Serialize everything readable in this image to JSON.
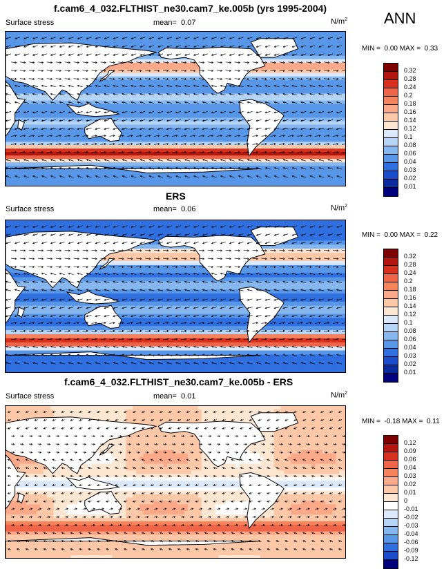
{
  "season": "ANN",
  "panels": [
    {
      "title": "f.cam6_4_032.FLTHIST_ne30.cam7_ke.005b (yrs 1995-2004)",
      "variable": "Surface stress",
      "mean_label": "mean=",
      "mean_value": "0.07",
      "units_base": "N/m",
      "units_exp": "2",
      "min_label": "MIN =",
      "min_value": "0.00",
      "max_label": "MAX =",
      "max_value": "0.33",
      "colorbar": [
        "0.32",
        "0.28",
        "0.24",
        "0.2",
        "0.18",
        "0.16",
        "0.14",
        "0.12",
        "0.1",
        "0.08",
        "0.06",
        "0.04",
        "0.03",
        "0.02",
        "0.01"
      ],
      "colors": [
        "#7f0000",
        "#b2160e",
        "#d7301f",
        "#ef6548",
        "#f5845c",
        "#fca98a",
        "#fcc8a8",
        "#fde6d2",
        "#dbe9fa",
        "#b6d4f5",
        "#86b7ee",
        "#5896e8",
        "#2f6fdf",
        "#1a4ccb",
        "#0a2a9e",
        "#00007f"
      ]
    },
    {
      "title": "ERS",
      "variable": "Surface stress",
      "mean_label": "mean=",
      "mean_value": "0.06",
      "units_base": "N/m",
      "units_exp": "2",
      "min_label": "MIN =",
      "min_value": "0.00",
      "max_label": "MAX =",
      "max_value": "0.22",
      "colorbar": [
        "0.32",
        "0.28",
        "0.24",
        "0.2",
        "0.18",
        "0.16",
        "0.14",
        "0.12",
        "0.1",
        "0.08",
        "0.06",
        "0.04",
        "0.03",
        "0.02",
        "0.01"
      ],
      "colors": [
        "#7f0000",
        "#b2160e",
        "#d7301f",
        "#ef6548",
        "#f5845c",
        "#fca98a",
        "#fcc8a8",
        "#fde6d2",
        "#dbe9fa",
        "#b6d4f5",
        "#86b7ee",
        "#5896e8",
        "#2f6fdf",
        "#1a4ccb",
        "#0a2a9e",
        "#00007f"
      ]
    },
    {
      "title": "f.cam6_4_032.FLTHIST_ne30.cam7_ke.005b - ERS",
      "variable": "Surface stress",
      "mean_label": "mean=",
      "mean_value": "0.01",
      "units_base": "N/m",
      "units_exp": "2",
      "min_label": "MIN =",
      "min_value": "-0.18",
      "max_label": "MAX =",
      "max_value": "0.11",
      "colorbar": [
        "0.12",
        "0.09",
        "0.06",
        "0.04",
        "0.03",
        "0.02",
        "0.01",
        "0",
        "-0.01",
        "-0.02",
        "-0.03",
        "-0.04",
        "-0.06",
        "-0.09",
        "-0.12"
      ],
      "colors": [
        "#7f0000",
        "#b2160e",
        "#d7301f",
        "#ef6548",
        "#f5845c",
        "#fca98a",
        "#fcc8a8",
        "#fde6d2",
        "#ffffff",
        "#dbe9fa",
        "#b6d4f5",
        "#86b7ee",
        "#5896e8",
        "#2f6fdf",
        "#1a4ccb",
        "#00007f"
      ]
    }
  ],
  "chart_data": [
    {
      "type": "heatmap",
      "title": "f.cam6_4_032.FLTHIST_ne30.cam7_ke.005b (yrs 1995-2004)",
      "variable": "Surface stress",
      "units": "N/m2",
      "mean": 0.07,
      "min": 0.0,
      "max": 0.33,
      "contour_levels": [
        0.01,
        0.02,
        0.03,
        0.04,
        0.06,
        0.08,
        0.1,
        0.12,
        0.14,
        0.16,
        0.18,
        0.2,
        0.24,
        0.28,
        0.32
      ],
      "overlay": "wind stress vectors",
      "projection": "global cylindrical, Pacific-centered"
    },
    {
      "type": "heatmap",
      "title": "ERS",
      "variable": "Surface stress",
      "units": "N/m2",
      "mean": 0.06,
      "min": 0.0,
      "max": 0.22,
      "contour_levels": [
        0.01,
        0.02,
        0.03,
        0.04,
        0.06,
        0.08,
        0.1,
        0.12,
        0.14,
        0.16,
        0.18,
        0.2,
        0.24,
        0.28,
        0.32
      ],
      "overlay": "wind stress vectors",
      "projection": "global cylindrical, Pacific-centered"
    },
    {
      "type": "heatmap",
      "title": "f.cam6_4_032.FLTHIST_ne30.cam7_ke.005b - ERS",
      "variable": "Surface stress",
      "units": "N/m2",
      "mean": 0.01,
      "min": -0.18,
      "max": 0.11,
      "contour_levels": [
        -0.12,
        -0.09,
        -0.06,
        -0.04,
        -0.03,
        -0.02,
        -0.01,
        0,
        0.01,
        0.02,
        0.03,
        0.04,
        0.06,
        0.09,
        0.12
      ],
      "overlay": "wind stress difference vectors",
      "projection": "global cylindrical, Pacific-centered"
    }
  ]
}
